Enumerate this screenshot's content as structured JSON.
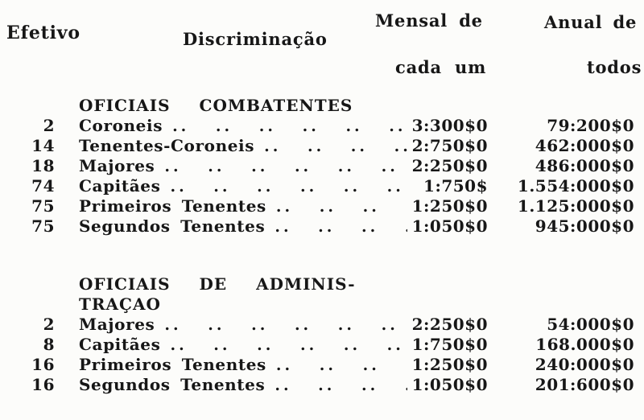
{
  "colors": {
    "background": "#fcfcfa",
    "ink": "#171717"
  },
  "header": {
    "efetivo": "Efetivo",
    "discriminacao": "Discriminação",
    "mensal_line1": "Mensal de",
    "mensal_line2": "cada um",
    "anual_line1": "Anual de",
    "anual_line2": "todos"
  },
  "leader_dots": ".. .. .. .. .. .. .. .. .. .. .. .. .. ..",
  "table": {
    "sections": [
      {
        "title_line1": "OFICIAIS COMBATENTES",
        "title_line2": "",
        "rows": [
          {
            "efetivo": "2",
            "rank": "Coroneis",
            "monthly": "3:300$0",
            "annual": "79:200$0"
          },
          {
            "efetivo": "14",
            "rank": "Tenentes-Coroneis",
            "monthly": "2:750$0",
            "annual": "462:000$0"
          },
          {
            "efetivo": "18",
            "rank": "Majores",
            "monthly": "2:250$0",
            "annual": "486:000$0"
          },
          {
            "efetivo": "74",
            "rank": "Capitães",
            "monthly": "1:750$",
            "annual": "1.554:000$0"
          },
          {
            "efetivo": "75",
            "rank": "Primeiros Tenentes",
            "monthly": "1:250$0",
            "annual": "1.125:000$0"
          },
          {
            "efetivo": "75",
            "rank": "Segundos Tenentes",
            "monthly": "1:050$0",
            "annual": "945:000$0"
          }
        ]
      },
      {
        "title_line1": "OFICIAIS DE ADMINIS-",
        "title_line2": "TRAÇAO",
        "rows": [
          {
            "efetivo": "2",
            "rank": "Majores",
            "monthly": "2:250$0",
            "annual": "54:000$0"
          },
          {
            "efetivo": "8",
            "rank": "Capitães",
            "monthly": "1:750$0",
            "annual": "168.000$0"
          },
          {
            "efetivo": "16",
            "rank": "Primeiros Tenentes",
            "monthly": "1:250$0",
            "annual": "240:000$0"
          },
          {
            "efetivo": "16",
            "rank": "Segundos Tenentes",
            "monthly": "1:050$0",
            "annual": "201:600$0"
          }
        ]
      }
    ]
  }
}
